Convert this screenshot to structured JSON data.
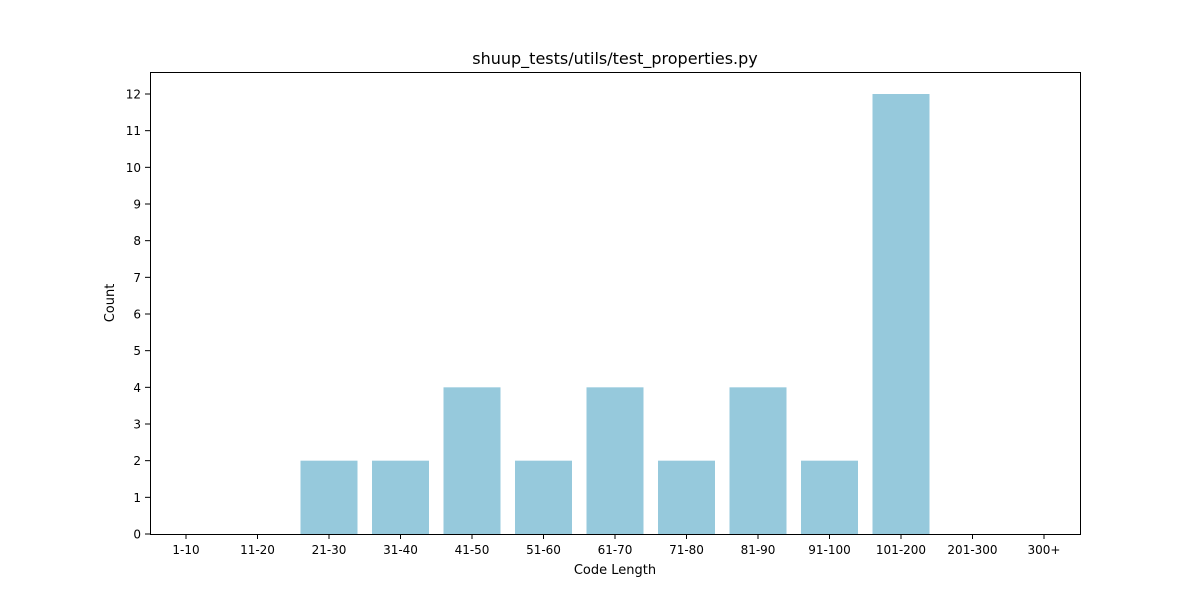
{
  "chart_data": {
    "type": "bar",
    "title": "shuup_tests/utils/test_properties.py",
    "xlabel": "Code Length",
    "ylabel": "Count",
    "categories": [
      "1-10",
      "11-20",
      "21-30",
      "31-40",
      "41-50",
      "51-60",
      "61-70",
      "71-80",
      "81-90",
      "91-100",
      "101-200",
      "201-300",
      "300+"
    ],
    "values": [
      0,
      0,
      2,
      2,
      4,
      2,
      4,
      2,
      4,
      2,
      12,
      0,
      0
    ],
    "ylim": [
      0,
      12.6
    ],
    "yticks": [
      0,
      1,
      2,
      3,
      4,
      5,
      6,
      7,
      8,
      9,
      10,
      11,
      12
    ],
    "bar_color": "#96c9dc",
    "grid": false,
    "legend": "none"
  }
}
